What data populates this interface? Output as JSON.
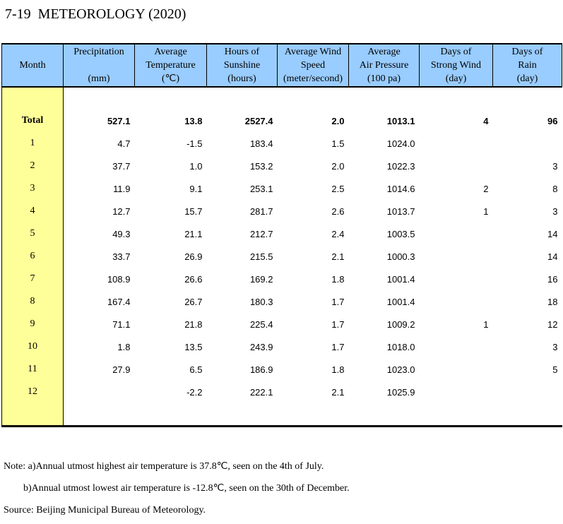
{
  "title": "7-19  METEOROLOGY (2020)",
  "colors": {
    "header_bg": "#99CCFF",
    "month_col_bg": "#FFFF99",
    "border": "#000000"
  },
  "table": {
    "columns": [
      {
        "key": "month",
        "lines": [
          "Month"
        ]
      },
      {
        "key": "precipitation",
        "lines": [
          "Precipitation",
          "",
          "(mm)"
        ]
      },
      {
        "key": "avg-temperature",
        "lines": [
          "Average",
          "Temperature",
          "(℃)"
        ]
      },
      {
        "key": "hours-of-sunshine",
        "lines": [
          "Hours of",
          "Sunshine",
          "(hours)"
        ]
      },
      {
        "key": "avg-wind-speed",
        "lines": [
          "Average Wind",
          "Speed",
          "(meter/second)"
        ]
      },
      {
        "key": "avg-air-pressure",
        "lines": [
          "Average",
          "Air Pressure",
          "(100 pa)"
        ]
      },
      {
        "key": "days-of-strong-wind",
        "lines": [
          "Days of",
          "Strong Wind",
          "(day)"
        ]
      },
      {
        "key": "days-of-rain",
        "lines": [
          "Days of",
          "Rain",
          "(day)"
        ]
      }
    ],
    "rows": [
      {
        "month": "Total",
        "bold": true,
        "values": [
          "527.1",
          "13.8",
          "2527.4",
          "2.0",
          "1013.1",
          "4",
          "96"
        ]
      },
      {
        "month": "1",
        "bold": false,
        "values": [
          "4.7",
          "-1.5",
          "183.4",
          "1.5",
          "1024.0",
          "",
          ""
        ]
      },
      {
        "month": "2",
        "bold": false,
        "values": [
          "37.7",
          "1.0",
          "153.2",
          "2.0",
          "1022.3",
          "",
          "3"
        ]
      },
      {
        "month": "3",
        "bold": false,
        "values": [
          "11.9",
          "9.1",
          "253.1",
          "2.5",
          "1014.6",
          "2",
          "8"
        ]
      },
      {
        "month": "4",
        "bold": false,
        "values": [
          "12.7",
          "15.7",
          "281.7",
          "2.6",
          "1013.7",
          "1",
          "3"
        ]
      },
      {
        "month": "5",
        "bold": false,
        "values": [
          "49.3",
          "21.1",
          "212.7",
          "2.4",
          "1003.5",
          "",
          "14"
        ]
      },
      {
        "month": "6",
        "bold": false,
        "values": [
          "33.7",
          "26.9",
          "215.5",
          "2.1",
          "1000.3",
          "",
          "14"
        ]
      },
      {
        "month": "7",
        "bold": false,
        "values": [
          "108.9",
          "26.6",
          "169.2",
          "1.8",
          "1001.4",
          "",
          "16"
        ]
      },
      {
        "month": "8",
        "bold": false,
        "values": [
          "167.4",
          "26.7",
          "180.3",
          "1.7",
          "1001.4",
          "",
          "18"
        ]
      },
      {
        "month": "9",
        "bold": false,
        "values": [
          "71.1",
          "21.8",
          "225.4",
          "1.7",
          "1009.2",
          "1",
          "12"
        ]
      },
      {
        "month": "10",
        "bold": false,
        "values": [
          "1.8",
          "13.5",
          "243.9",
          "1.7",
          "1018.0",
          "",
          "3"
        ]
      },
      {
        "month": "11",
        "bold": false,
        "values": [
          "27.9",
          "6.5",
          "186.9",
          "1.8",
          "1023.0",
          "",
          "5"
        ]
      },
      {
        "month": "12",
        "bold": false,
        "values": [
          "",
          "-2.2",
          "222.1",
          "2.1",
          "1025.9",
          "",
          ""
        ]
      }
    ]
  },
  "notes": {
    "note_a": "Note: a)Annual utmost highest air temperature is 37.8℃, seen on the 4th of July.",
    "note_b": "b)Annual utmost lowest air temperature is -12.8℃, seen on the 30th of December.",
    "source": "Source: Beijing Municipal Bureau of Meteorology."
  }
}
